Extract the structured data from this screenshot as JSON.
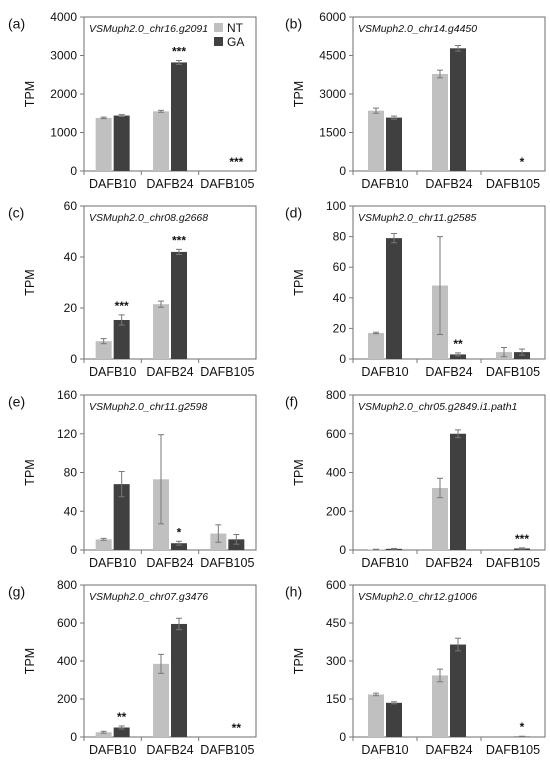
{
  "colors": {
    "NT": "#c0c0c0",
    "GA": "#404040",
    "axis": "#7a7a7a",
    "frame": "#6e6e6e"
  },
  "legend": [
    "NT",
    "GA"
  ],
  "chart_data": [
    {
      "label": "(a)",
      "type": "bar",
      "title": "VSMuph2.0_chr16.g2091",
      "ylabel": "TPM",
      "categories": [
        "DAFB10",
        "DAFB24",
        "DAFB105"
      ],
      "ylim": [
        0,
        4000
      ],
      "yticks": [
        0,
        1000,
        2000,
        3000,
        4000
      ],
      "series": [
        {
          "name": "NT",
          "values": [
            1380,
            1550,
            0
          ],
          "errors": [
            20,
            25,
            0
          ]
        },
        {
          "name": "GA",
          "values": [
            1440,
            2820,
            0
          ],
          "errors": [
            25,
            50,
            0
          ]
        }
      ],
      "annotations": [
        "",
        "***",
        "***"
      ]
    },
    {
      "label": "(b)",
      "type": "bar",
      "title": "VSMuph2.0_chr14.g4450",
      "ylabel": "TPM",
      "categories": [
        "DAFB10",
        "DAFB24",
        "DAFB105"
      ],
      "ylim": [
        0,
        6000
      ],
      "yticks": [
        0,
        1500,
        3000,
        4500,
        6000
      ],
      "series": [
        {
          "name": "NT",
          "values": [
            2350,
            3780,
            0
          ],
          "errors": [
            100,
            150,
            0
          ]
        },
        {
          "name": "GA",
          "values": [
            2080,
            4780,
            0
          ],
          "errors": [
            60,
            110,
            0
          ]
        }
      ],
      "annotations": [
        "",
        "",
        "*"
      ]
    },
    {
      "label": "(c)",
      "type": "bar",
      "title": "VSMuph2.0_chr08.g2668",
      "ylabel": "TPM",
      "categories": [
        "DAFB10",
        "DAFB24",
        "DAFB105"
      ],
      "ylim": [
        0,
        60
      ],
      "yticks": [
        0,
        20,
        40,
        60
      ],
      "series": [
        {
          "name": "NT",
          "values": [
            7,
            21.5,
            0
          ],
          "errors": [
            1,
            1.2,
            0
          ]
        },
        {
          "name": "GA",
          "values": [
            15.3,
            42,
            0
          ],
          "errors": [
            2,
            1,
            0
          ]
        }
      ],
      "annotations": [
        "***",
        "***",
        ""
      ]
    },
    {
      "label": "(d)",
      "type": "bar",
      "title": "VSMuph2.0_chr11.g2585",
      "ylabel": "TPM",
      "categories": [
        "DAFB10",
        "DAFB24",
        "DAFB105"
      ],
      "ylim": [
        0,
        100
      ],
      "yticks": [
        0,
        20,
        40,
        60,
        80,
        100
      ],
      "series": [
        {
          "name": "NT",
          "values": [
            17,
            48,
            4.5
          ],
          "errors": [
            0.5,
            32,
            3
          ]
        },
        {
          "name": "GA",
          "values": [
            79,
            3,
            4.5
          ],
          "errors": [
            3,
            1,
            2
          ]
        }
      ],
      "annotations": [
        "",
        "**",
        ""
      ]
    },
    {
      "label": "(e)",
      "type": "bar",
      "title": "VSMuph2.0_chr11.g2598",
      "ylabel": "TPM",
      "categories": [
        "DAFB10",
        "DAFB24",
        "DAFB105"
      ],
      "ylim": [
        0,
        160
      ],
      "yticks": [
        0,
        40,
        80,
        120,
        160
      ],
      "series": [
        {
          "name": "NT",
          "values": [
            11,
            73,
            17
          ],
          "errors": [
            1,
            46,
            9
          ]
        },
        {
          "name": "GA",
          "values": [
            68,
            7,
            11
          ],
          "errors": [
            13,
            2,
            5
          ]
        }
      ],
      "annotations": [
        "",
        "*",
        ""
      ]
    },
    {
      "label": "(f)",
      "type": "bar",
      "title": "VSMuph2.0_chr05.g2849.i1.path1",
      "ylabel": "TPM",
      "categories": [
        "DAFB10",
        "DAFB24",
        "DAFB105"
      ],
      "ylim": [
        0,
        800
      ],
      "yticks": [
        0,
        200,
        400,
        600,
        800
      ],
      "series": [
        {
          "name": "NT",
          "values": [
            3,
            320,
            0
          ],
          "errors": [
            1,
            50,
            0
          ]
        },
        {
          "name": "GA",
          "values": [
            6,
            600,
            8
          ],
          "errors": [
            2,
            20,
            3
          ]
        }
      ],
      "annotations": [
        "",
        "",
        "***"
      ]
    },
    {
      "label": "(g)",
      "type": "bar",
      "title": "VSMuph2.0_chr07.g3476",
      "ylabel": "TPM",
      "categories": [
        "DAFB10",
        "DAFB24",
        "DAFB105"
      ],
      "ylim": [
        0,
        800
      ],
      "yticks": [
        0,
        200,
        400,
        600,
        800
      ],
      "series": [
        {
          "name": "NT",
          "values": [
            25,
            385,
            0
          ],
          "errors": [
            5,
            50,
            0
          ]
        },
        {
          "name": "GA",
          "values": [
            50,
            595,
            0
          ],
          "errors": [
            8,
            30,
            0
          ]
        }
      ],
      "annotations": [
        "**",
        "",
        "**"
      ]
    },
    {
      "label": "(h)",
      "type": "bar",
      "title": "VSMuph2.0_chr12.g1006",
      "ylabel": "TPM",
      "categories": [
        "DAFB10",
        "DAFB24",
        "DAFB105"
      ],
      "ylim": [
        0,
        600
      ],
      "yticks": [
        0,
        150,
        300,
        450,
        600
      ],
      "series": [
        {
          "name": "NT",
          "values": [
            168,
            243,
            0
          ],
          "errors": [
            5,
            25,
            0
          ]
        },
        {
          "name": "GA",
          "values": [
            135,
            365,
            2
          ],
          "errors": [
            4,
            25,
            1
          ]
        }
      ],
      "annotations": [
        "",
        "",
        "*"
      ]
    }
  ]
}
